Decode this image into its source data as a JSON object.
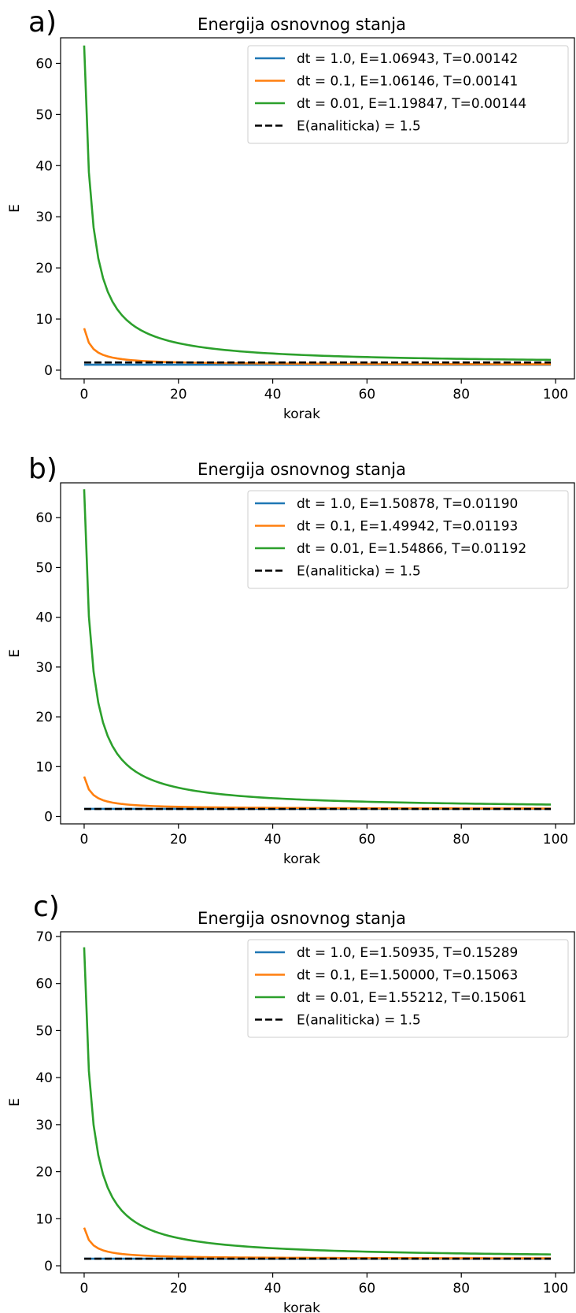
{
  "colors": {
    "dt_1_0": "#1f77b4",
    "dt_0_1": "#ff7f0e",
    "dt_0_01": "#2ca02c",
    "analytic": "#000000"
  },
  "chart_data": [
    {
      "panel_label": "a)",
      "type": "line",
      "title": "Energija osnovnog stanja",
      "xlabel": "korak",
      "ylabel": "E",
      "xlim": [
        -5,
        104
      ],
      "ylim": [
        -1.7,
        65
      ],
      "xticks": [
        0,
        20,
        40,
        60,
        80,
        100
      ],
      "yticks": [
        0,
        10,
        20,
        30,
        40,
        50,
        60
      ],
      "grid": false,
      "legend_position": "top-right",
      "series": [
        {
          "name": "dt = 1.0, E=1.06943, T=0.00142",
          "color": "#1f77b4",
          "style": "solid",
          "start": 1.07,
          "final": 1.06943
        },
        {
          "name": "dt = 0.1, E=1.06146, T=0.00141",
          "color": "#ff7f0e",
          "style": "solid",
          "start": 8.2,
          "final": 1.06146
        },
        {
          "name": "dt = 0.01, E=1.19847, T=0.00144",
          "color": "#2ca02c",
          "style": "solid",
          "start": 63.5,
          "final": 1.19847
        },
        {
          "name": "E(analiticka) = 1.5",
          "color": "#000000",
          "style": "dashed",
          "start": 1.5,
          "final": 1.5
        }
      ]
    },
    {
      "panel_label": "b)",
      "type": "line",
      "title": "Energija osnovnog stanja",
      "xlabel": "korak",
      "ylabel": "E",
      "xlim": [
        -5,
        104
      ],
      "ylim": [
        -1.5,
        67
      ],
      "xticks": [
        0,
        20,
        40,
        60,
        80,
        100
      ],
      "yticks": [
        0,
        10,
        20,
        30,
        40,
        50,
        60
      ],
      "grid": false,
      "legend_position": "top-right",
      "series": [
        {
          "name": "dt = 1.0, E=1.50878, T=0.01190",
          "color": "#1f77b4",
          "style": "solid",
          "start": 1.51,
          "final": 1.50878
        },
        {
          "name": "dt = 0.1, E=1.49942, T=0.01193",
          "color": "#ff7f0e",
          "style": "solid",
          "start": 8.0,
          "final": 1.49942
        },
        {
          "name": "dt = 0.01, E=1.54866, T=0.01192",
          "color": "#2ca02c",
          "style": "solid",
          "start": 65.7,
          "final": 1.54866
        },
        {
          "name": "E(analiticka) = 1.5",
          "color": "#000000",
          "style": "dashed",
          "start": 1.5,
          "final": 1.5
        }
      ]
    },
    {
      "panel_label": "c)",
      "type": "line",
      "title": "Energija osnovnog stanja",
      "xlabel": "korak",
      "ylabel": "E",
      "xlim": [
        -5,
        104
      ],
      "ylim": [
        -1.5,
        71
      ],
      "xticks": [
        0,
        20,
        40,
        60,
        80,
        100
      ],
      "yticks": [
        0,
        10,
        20,
        30,
        40,
        50,
        60,
        70
      ],
      "grid": false,
      "legend_position": "top-right",
      "series": [
        {
          "name": "dt = 1.0, E=1.50935, T=0.15289",
          "color": "#1f77b4",
          "style": "solid",
          "start": 1.51,
          "final": 1.50935
        },
        {
          "name": "dt = 0.1, E=1.50000, T=0.15063",
          "color": "#ff7f0e",
          "style": "solid",
          "start": 8.1,
          "final": 1.5
        },
        {
          "name": "dt = 0.01, E=1.55212, T=0.15061",
          "color": "#2ca02c",
          "style": "solid",
          "start": 67.7,
          "final": 1.55212
        },
        {
          "name": "E(analiticka) = 1.5",
          "color": "#000000",
          "style": "dashed",
          "start": 1.5,
          "final": 1.5
        }
      ]
    }
  ]
}
